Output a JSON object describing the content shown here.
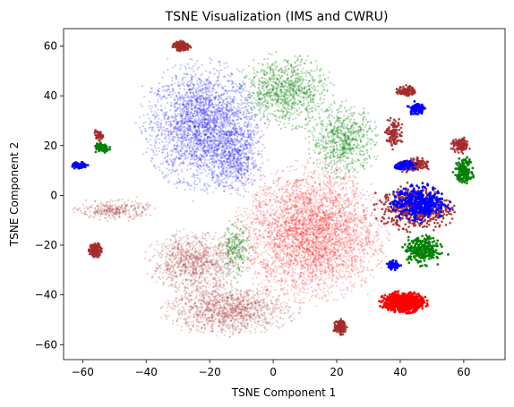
{
  "chart_data": {
    "type": "scatter",
    "title": "TSNE Visualization (IMS and CWRU)",
    "xlabel": "TSNE Component 1",
    "ylabel": "TSNE Component 2",
    "xlim": [
      -66,
      73
    ],
    "ylim": [
      -66,
      67
    ],
    "xticks": [
      -60,
      -40,
      -20,
      0,
      20,
      40,
      60
    ],
    "yticks": [
      -60,
      -40,
      -20,
      0,
      20,
      40,
      60
    ],
    "grid": false,
    "legend": "none",
    "colors": {
      "blue": "#0000ff",
      "green": "#008000",
      "red": "#ff0000",
      "brown": "#a52a2a"
    },
    "clusters": [
      {
        "color": "blue",
        "cx": -22,
        "cy": 28,
        "rx": 18,
        "ry": 24,
        "n": 2600,
        "alpha": 0.22,
        "size": 1.1
      },
      {
        "color": "blue",
        "cx": -12,
        "cy": 14,
        "rx": 8,
        "ry": 14,
        "n": 500,
        "alpha": 0.22,
        "size": 1.1
      },
      {
        "color": "green",
        "cx": 4,
        "cy": 42,
        "rx": 14,
        "ry": 14,
        "n": 900,
        "alpha": 0.3,
        "size": 1.1
      },
      {
        "color": "green",
        "cx": 22,
        "cy": 22,
        "rx": 11,
        "ry": 14,
        "n": 700,
        "alpha": 0.3,
        "size": 1.1
      },
      {
        "color": "green",
        "cx": -12,
        "cy": -22,
        "rx": 5,
        "ry": 11,
        "n": 250,
        "alpha": 0.3,
        "size": 1.1
      },
      {
        "color": "red",
        "cx": 12,
        "cy": -15,
        "rx": 22,
        "ry": 26,
        "n": 3600,
        "alpha": 0.2,
        "size": 1.1
      },
      {
        "color": "brown",
        "cx": -25,
        "cy": -27,
        "rx": 14,
        "ry": 12,
        "n": 1000,
        "alpha": 0.22,
        "size": 1.1
      },
      {
        "color": "brown",
        "cx": -14,
        "cy": -46,
        "rx": 20,
        "ry": 10,
        "n": 1300,
        "alpha": 0.22,
        "size": 1.1
      },
      {
        "color": "brown",
        "cx": -50,
        "cy": -6,
        "rx": 12,
        "ry": 4,
        "n": 300,
        "alpha": 0.25,
        "size": 1.1
      },
      {
        "color": "brown",
        "cx": -29,
        "cy": 60,
        "rx": 3,
        "ry": 2,
        "n": 150,
        "alpha": 0.9,
        "size": 1.3
      },
      {
        "color": "brown",
        "cx": 21,
        "cy": -53,
        "rx": 2,
        "ry": 3,
        "n": 120,
        "alpha": 0.9,
        "size": 1.3
      },
      {
        "color": "brown",
        "cx": -56,
        "cy": -22,
        "rx": 2,
        "ry": 3,
        "n": 130,
        "alpha": 0.9,
        "size": 1.3
      },
      {
        "color": "brown",
        "cx": 42,
        "cy": 42,
        "rx": 3,
        "ry": 2,
        "n": 120,
        "alpha": 0.9,
        "size": 1.3
      },
      {
        "color": "brown",
        "cx": 38,
        "cy": 25,
        "rx": 3,
        "ry": 6,
        "n": 120,
        "alpha": 0.9,
        "size": 1.3
      },
      {
        "color": "brown",
        "cx": 59,
        "cy": 20,
        "rx": 3,
        "ry": 3,
        "n": 100,
        "alpha": 0.9,
        "size": 1.3
      },
      {
        "color": "brown",
        "cx": 44,
        "cy": 12,
        "rx": 5,
        "ry": 3,
        "n": 150,
        "alpha": 0.9,
        "size": 1.3
      },
      {
        "color": "brown",
        "cx": 45,
        "cy": -5,
        "rx": 12,
        "ry": 9,
        "n": 500,
        "alpha": 0.9,
        "size": 1.3
      },
      {
        "color": "brown",
        "cx": -55,
        "cy": 24,
        "rx": 1.5,
        "ry": 2,
        "n": 50,
        "alpha": 0.9,
        "size": 1.3
      },
      {
        "color": "blue",
        "cx": 46,
        "cy": -3,
        "rx": 9,
        "ry": 7,
        "n": 400,
        "alpha": 0.95,
        "size": 1.4
      },
      {
        "color": "blue",
        "cx": 45,
        "cy": 35,
        "rx": 2.5,
        "ry": 2.5,
        "n": 100,
        "alpha": 0.95,
        "size": 1.4
      },
      {
        "color": "blue",
        "cx": 38,
        "cy": -28,
        "rx": 2,
        "ry": 2,
        "n": 60,
        "alpha": 0.95,
        "size": 1.4
      },
      {
        "color": "blue",
        "cx": -61,
        "cy": 12,
        "rx": 2.5,
        "ry": 1.5,
        "n": 70,
        "alpha": 0.95,
        "size": 1.4
      },
      {
        "color": "blue",
        "cx": 42,
        "cy": 12,
        "rx": 4,
        "ry": 2,
        "n": 80,
        "alpha": 0.95,
        "size": 1.4
      },
      {
        "color": "green",
        "cx": -54,
        "cy": 19,
        "rx": 2.5,
        "ry": 2,
        "n": 90,
        "alpha": 0.95,
        "size": 1.4
      },
      {
        "color": "green",
        "cx": 60,
        "cy": 10,
        "rx": 3,
        "ry": 5,
        "n": 150,
        "alpha": 0.95,
        "size": 1.4
      },
      {
        "color": "green",
        "cx": 47,
        "cy": -22,
        "rx": 6,
        "ry": 6,
        "n": 250,
        "alpha": 0.95,
        "size": 1.4
      },
      {
        "color": "red",
        "cx": 41,
        "cy": -43,
        "rx": 7,
        "ry": 4,
        "n": 700,
        "alpha": 0.95,
        "size": 1.4
      }
    ]
  }
}
